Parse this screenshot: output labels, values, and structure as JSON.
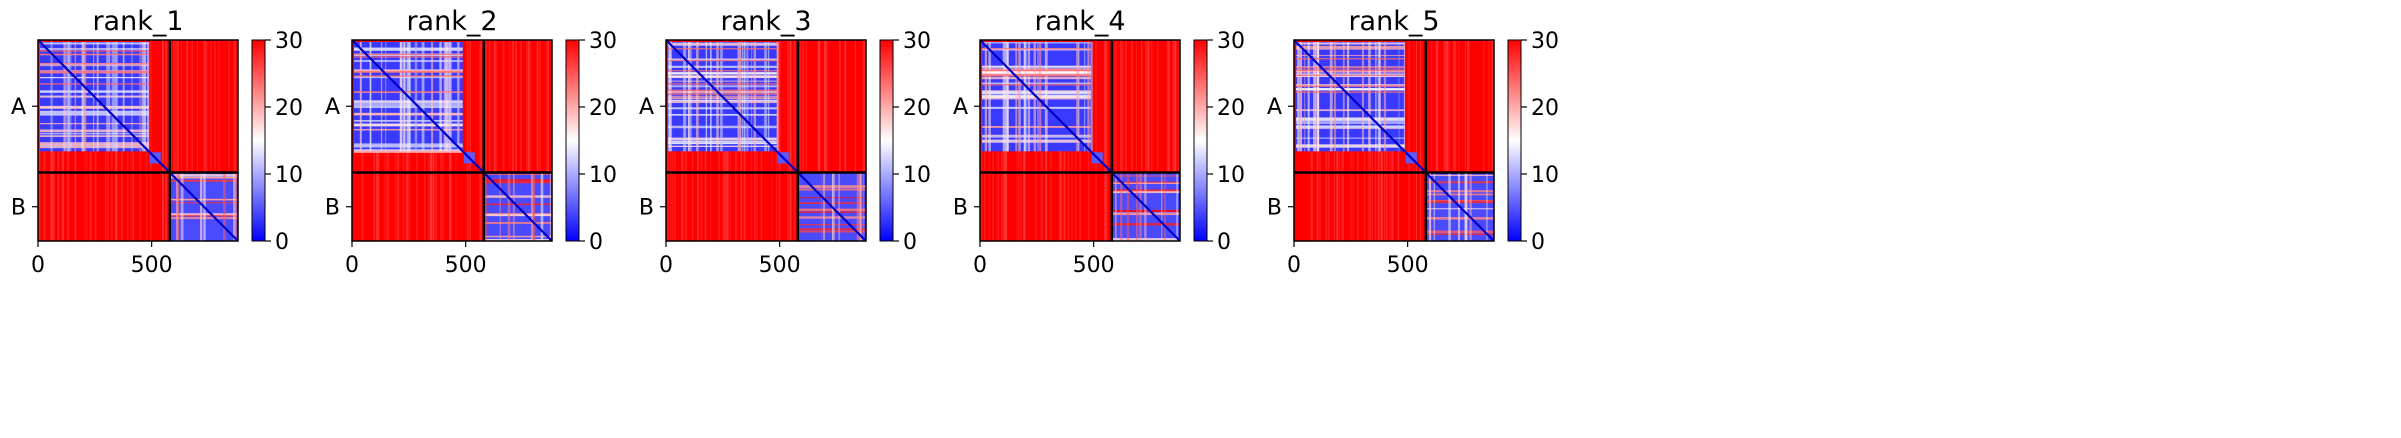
{
  "chart_data": [
    {
      "type": "heatmap",
      "title": "rank_1",
      "x_ticks": [
        "0",
        "500"
      ],
      "y_tick_labels": [
        "A",
        "B"
      ],
      "chain_lengths": [
        580,
        300
      ],
      "colorbar": {
        "min": 0,
        "max": 30,
        "ticks": [
          "0",
          "10",
          "20",
          "30"
        ],
        "colors": [
          "#0000ff",
          "#ffffff",
          "#ff0000"
        ]
      }
    },
    {
      "type": "heatmap",
      "title": "rank_2",
      "x_ticks": [
        "0",
        "500"
      ],
      "y_tick_labels": [
        "A",
        "B"
      ],
      "chain_lengths": [
        580,
        300
      ],
      "colorbar": {
        "min": 0,
        "max": 30,
        "ticks": [
          "0",
          "10",
          "20",
          "30"
        ],
        "colors": [
          "#0000ff",
          "#ffffff",
          "#ff0000"
        ]
      }
    },
    {
      "type": "heatmap",
      "title": "rank_3",
      "x_ticks": [
        "0",
        "500"
      ],
      "y_tick_labels": [
        "A",
        "B"
      ],
      "chain_lengths": [
        580,
        300
      ],
      "colorbar": {
        "min": 0,
        "max": 30,
        "ticks": [
          "0",
          "10",
          "20",
          "30"
        ],
        "colors": [
          "#0000ff",
          "#ffffff",
          "#ff0000"
        ]
      }
    },
    {
      "type": "heatmap",
      "title": "rank_4",
      "x_ticks": [
        "0",
        "500"
      ],
      "y_tick_labels": [
        "A",
        "B"
      ],
      "chain_lengths": [
        580,
        300
      ],
      "colorbar": {
        "min": 0,
        "max": 30,
        "ticks": [
          "0",
          "10",
          "20",
          "30"
        ],
        "colors": [
          "#0000ff",
          "#ffffff",
          "#ff0000"
        ]
      }
    },
    {
      "type": "heatmap",
      "title": "rank_5",
      "x_ticks": [
        "0",
        "500"
      ],
      "y_tick_labels": [
        "A",
        "B"
      ],
      "chain_lengths": [
        580,
        300
      ],
      "colorbar": {
        "min": 0,
        "max": 30,
        "ticks": [
          "0",
          "10",
          "20",
          "30"
        ],
        "colors": [
          "#0000ff",
          "#ffffff",
          "#ff0000"
        ]
      }
    }
  ]
}
